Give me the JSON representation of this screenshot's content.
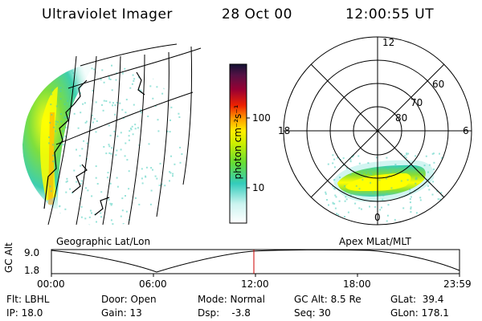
{
  "header": {
    "instrument": "Ultraviolet Imager",
    "date": "28 Oct 00",
    "time": "12:00:55 UT"
  },
  "colorbar": {
    "unit_label": "photon cm⁻²s⁻¹",
    "ticks": [
      "100",
      "10"
    ]
  },
  "polar_plot": {
    "mlt_labels": {
      "top": "12",
      "left": "18",
      "right": "6",
      "bottom": "0"
    },
    "lat_labels": [
      "60",
      "70",
      "80"
    ]
  },
  "projection_labels": {
    "left": "Geographic Lat/Lon",
    "right": "Apex MLat/MLT"
  },
  "altitude_plot": {
    "ylabel": "GC Alt",
    "yticks": [
      "9.0",
      "1.8"
    ],
    "xticks": [
      "00:00",
      "06:00",
      "12:00",
      "18:00",
      "23:59"
    ],
    "current_time_fraction": 0.5
  },
  "info": {
    "flt": "Flt: LBHL",
    "ip": "IP: 18.0",
    "door": "Door: Open",
    "gain": "Gain: 13",
    "mode": "Mode: Normal",
    "dsp": "Dsp:    -3.8",
    "gc_alt": "GC Alt: 8.5 Re",
    "seq": "Seq: 30",
    "glat": "GLat:  39.4",
    "glon": "GLon: 178.1"
  },
  "colors": {
    "marker": "#cc0000",
    "aurora_high": "#ffff00",
    "aurora_mid": "#66dd33",
    "aurora_low": "#22ccbb"
  }
}
